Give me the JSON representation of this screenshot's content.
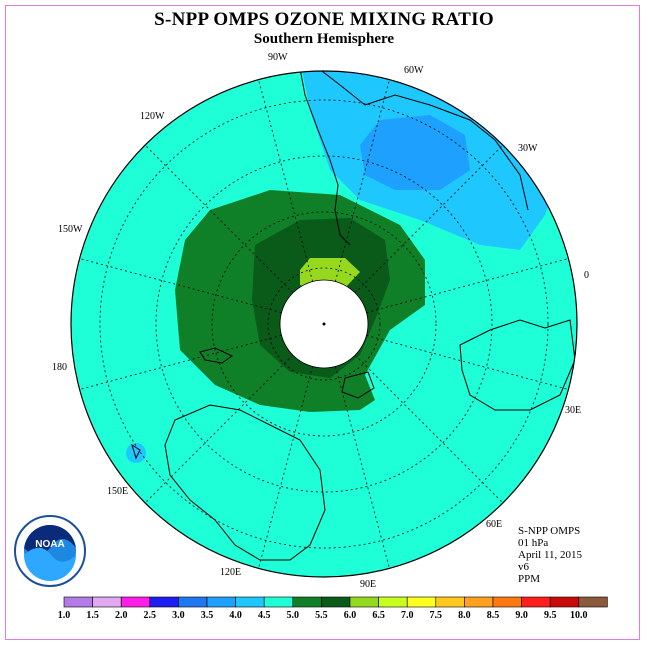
{
  "title": "S-NPP OMPS OZONE MIXING RATIO",
  "subtitle": "Southern Hemisphere",
  "longitude_labels": [
    "90W",
    "60W",
    "30W",
    "120W",
    "150W",
    "0",
    "180",
    "30E",
    "150E",
    "60E",
    "120E",
    "90E"
  ],
  "info": {
    "product": "S-NPP OMPS",
    "level": "01 hPa",
    "date": "April 11, 2015",
    "version": "v6",
    "unit": "PPM"
  },
  "logo_text": "NOAA",
  "colorbar": {
    "ticks": [
      "1.0",
      "1.5",
      "2.0",
      "2.5",
      "3.0",
      "3.5",
      "4.0",
      "4.5",
      "5.0",
      "5.5",
      "6.0",
      "6.5",
      "7.0",
      "7.5",
      "8.0",
      "8.5",
      "9.0",
      "9.5",
      "10.0"
    ],
    "colors": [
      "#b47be8",
      "#e0a8f0",
      "#ff1ee8",
      "#1e1ef0",
      "#1e78f0",
      "#1ea0ff",
      "#1ec8ff",
      "#1effd8",
      "#108028",
      "#0a5a1a",
      "#96d81e",
      "#c8ff1e",
      "#ffff1e",
      "#ffc81e",
      "#ffa01e",
      "#ff7810",
      "#ff1e1e",
      "#c80a0a",
      "#8b5a3c"
    ]
  }
}
